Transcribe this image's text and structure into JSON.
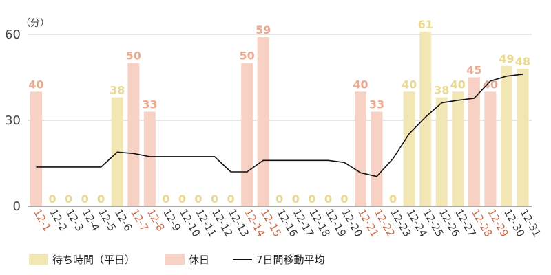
{
  "chart_data": {
    "type": "bar",
    "y_unit_label": "（分）",
    "ylim": [
      0,
      60
    ],
    "y_ticks": [
      "0",
      "30",
      "60"
    ],
    "grid": true,
    "legend_position": "bottom-left",
    "categories": [
      "12-1",
      "12-2",
      "12-3",
      "12-4",
      "12-5",
      "12-6",
      "12-7",
      "12-8",
      "12-9",
      "12-10",
      "12-11",
      "12-12",
      "12-13",
      "12-14",
      "12-15",
      "12-16",
      "12-17",
      "12-18",
      "12-19",
      "12-20",
      "12-21",
      "12-22",
      "12-23",
      "12-24",
      "12-25",
      "12-26",
      "12-27",
      "12-28",
      "12-29",
      "12-30",
      "12-31"
    ],
    "values": [
      40,
      0,
      0,
      0,
      0,
      38,
      50,
      33,
      0,
      0,
      0,
      0,
      0,
      50,
      59,
      0,
      0,
      0,
      0,
      0,
      40,
      33,
      0,
      40,
      61,
      38,
      40,
      45,
      40,
      49,
      48
    ],
    "day_type": [
      "holiday",
      "weekday",
      "weekday",
      "weekday",
      "weekday",
      "weekday",
      "holiday",
      "holiday",
      "weekday",
      "weekday",
      "weekday",
      "weekday",
      "weekday",
      "holiday",
      "holiday",
      "weekday",
      "weekday",
      "weekday",
      "weekday",
      "weekday",
      "holiday",
      "holiday",
      "weekday",
      "weekday",
      "weekday",
      "weekday",
      "weekday",
      "holiday",
      "holiday",
      "weekday",
      "weekday"
    ],
    "moving_average": [
      13.7,
      13.7,
      13.7,
      13.7,
      13.7,
      18.9,
      18.4,
      17.3,
      17.3,
      17.3,
      17.3,
      17.3,
      12,
      12,
      16,
      16,
      16,
      16,
      16,
      15.3,
      11.7,
      10.4,
      16.6,
      25.3,
      31.1,
      36.1,
      37,
      37.7,
      43.7,
      45.4,
      46.1
    ],
    "series": [
      {
        "name": "待ち時間（平日）",
        "color": "#f2e6b4",
        "label_color": "#e9d98f"
      },
      {
        "name": "休日",
        "color": "#f6d1c4",
        "label_color": "#eda98e"
      },
      {
        "name": "7日間移動平均",
        "color": "#111111"
      }
    ],
    "colors": {
      "grid": "#cccccc",
      "axis": "#555555",
      "weekday_tick": "#333333",
      "holiday_tick": "#c86a48"
    }
  }
}
